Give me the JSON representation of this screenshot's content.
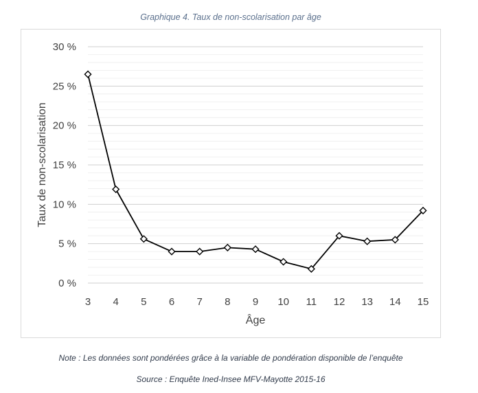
{
  "caption": {
    "title": "Graphique 4. Taux de non-scolarisation par âge",
    "note": "Note : Les données sont pondérées grâce à la variable de pondération disponible de l’enquête",
    "source": "Source : Enquête Ined-Insee MFV-Mayotte 2015-16"
  },
  "chart_data": {
    "type": "line",
    "title": "",
    "xlabel": "Âge",
    "ylabel": "Taux de non-scolarisation",
    "x": [
      3,
      4,
      5,
      6,
      7,
      8,
      9,
      10,
      11,
      12,
      13,
      14,
      15
    ],
    "series": [
      {
        "values": [
          26.5,
          11.9,
          5.6,
          4.0,
          4.0,
          4.5,
          4.3,
          2.7,
          1.8,
          6.0,
          5.3,
          5.5,
          9.2
        ]
      }
    ],
    "ylim": [
      0,
      30
    ],
    "y_ticks": [
      "0 %",
      "5 %",
      "10 %",
      "15 %",
      "20 %",
      "25 %",
      "30 %"
    ],
    "x_ticks": [
      "3",
      "4",
      "5",
      "6",
      "7",
      "8",
      "9",
      "10",
      "11",
      "12",
      "13",
      "14",
      "15"
    ],
    "grid": true,
    "marker": "diamond",
    "colors": {
      "line": "#000000",
      "grid": "#d9d9d9",
      "marker_fill": "#ffffff"
    }
  }
}
